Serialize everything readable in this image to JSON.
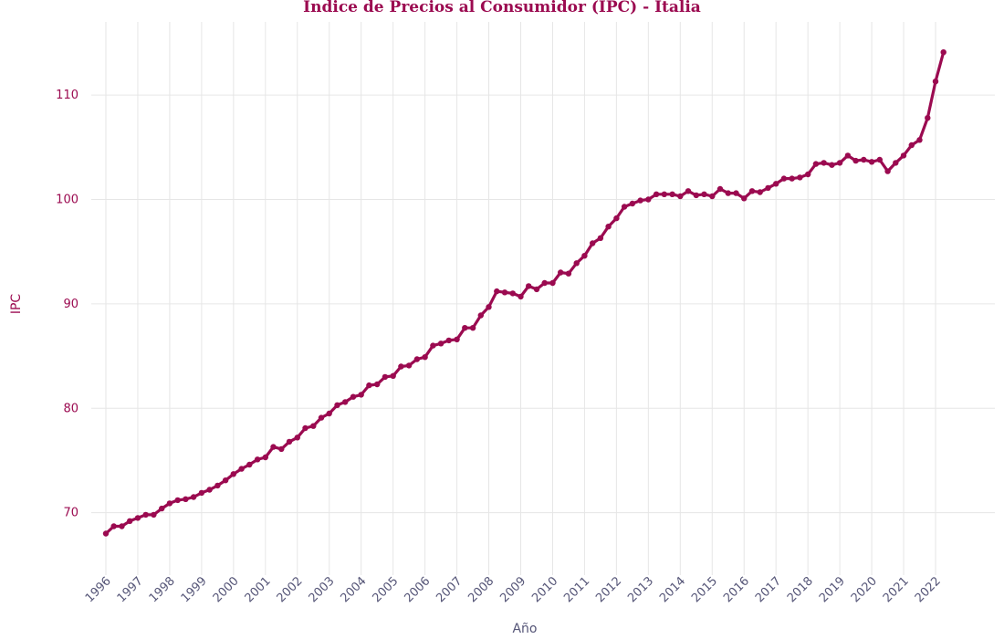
{
  "chart_data": {
    "type": "line",
    "title": "Indice de Precios al Consumidor (IPC) - Italia",
    "xlabel": "Año",
    "ylabel": "IPC",
    "x_ticks": [
      "1996",
      "1997",
      "1998",
      "1999",
      "2000",
      "2001",
      "2002",
      "2003",
      "2004",
      "2005",
      "2006",
      "2007",
      "2008",
      "2009",
      "2010",
      "2011",
      "2012",
      "2013",
      "2014",
      "2015",
      "2016",
      "2017",
      "2018",
      "2019",
      "2020",
      "2021",
      "2022"
    ],
    "y_ticks": [
      70,
      80,
      90,
      100,
      110
    ],
    "xlim": [
      1995.99,
      1996.99
    ],
    "ylim": [
      64.9,
      117.0
    ],
    "grid": true,
    "legend": "none",
    "colors": {
      "line": "#9b0a50",
      "text": "#9b0a50",
      "tick_x": "#555577",
      "grid": "#e6e6e6"
    },
    "series": [
      {
        "x_start": "1996-Q1",
        "frequency": "quarterly",
        "values": [
          68.0,
          68.7,
          68.7,
          69.2,
          69.5,
          69.8,
          69.8,
          70.4,
          70.9,
          71.2,
          71.3,
          71.5,
          71.9,
          72.2,
          72.6,
          73.1,
          73.7,
          74.2,
          74.6,
          75.1,
          75.3,
          76.3,
          76.1,
          76.8,
          77.2,
          78.1,
          78.3,
          79.1,
          79.5,
          80.3,
          80.6,
          81.1,
          81.3,
          82.2,
          82.3,
          83.0,
          83.1,
          84.0,
          84.1,
          84.7,
          84.9,
          86.0,
          86.2,
          86.5,
          86.6,
          87.7,
          87.7,
          88.9,
          89.7,
          91.2,
          91.1,
          91.0,
          90.7,
          91.7,
          91.4,
          92.0,
          92.0,
          93.0,
          92.9,
          93.9,
          94.6,
          95.8,
          96.3,
          97.4,
          98.2,
          99.3,
          99.6,
          99.9,
          100.0,
          100.5,
          100.5,
          100.5,
          100.3,
          100.8,
          100.4,
          100.5,
          100.3,
          101.0,
          100.6,
          100.6,
          100.1,
          100.8,
          100.7,
          101.1,
          101.5,
          102.0,
          102.0,
          102.1,
          102.4,
          103.4,
          103.5,
          103.3,
          103.5,
          104.2,
          103.7,
          103.8,
          103.6,
          103.8,
          102.7,
          103.5,
          104.2,
          105.2,
          105.7,
          107.8,
          111.3,
          114.1
        ]
      }
    ]
  }
}
